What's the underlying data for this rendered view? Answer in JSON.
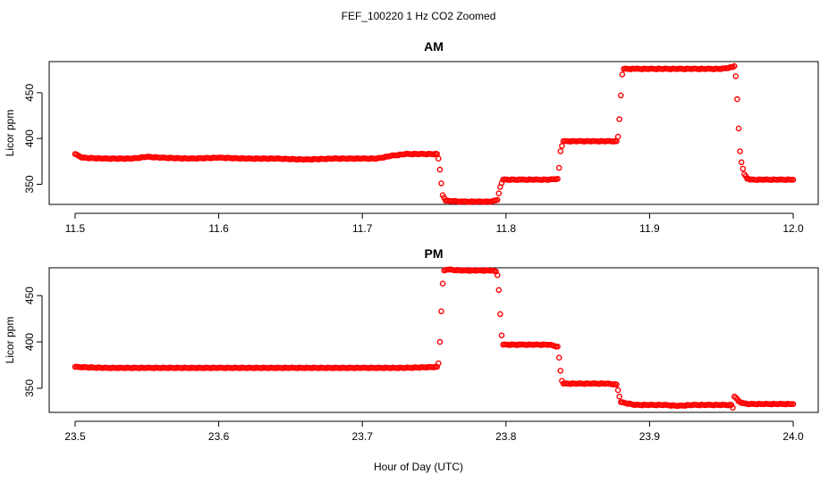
{
  "figure": {
    "title": "FEF_100220  1 Hz CO2 Zoomed",
    "xlabel": "Hour of Day (UTC)",
    "point_color": "#ff0000"
  },
  "chart_data": [
    {
      "type": "scatter",
      "title": "AM",
      "xlabel": "",
      "ylabel": "Licor ppm",
      "xlim": [
        11.5,
        12.0
      ],
      "ylim": [
        328,
        484
      ],
      "x_ticks": [
        "11.5",
        "11.6",
        "11.7",
        "11.8",
        "11.9",
        "12.0"
      ],
      "x_tick_values": [
        11.5,
        11.6,
        11.7,
        11.8,
        11.9,
        12.0
      ],
      "y_ticks": [
        "350",
        "400",
        "450"
      ],
      "y_tick_values": [
        350,
        400,
        450
      ],
      "series": [
        {
          "color": "#ff0000",
          "points": [
            [
              11.5,
              383
            ],
            [
              11.505,
              379
            ],
            [
              11.52,
              378
            ],
            [
              11.54,
              378
            ],
            [
              11.55,
              380
            ],
            [
              11.56,
              379
            ],
            [
              11.58,
              378
            ],
            [
              11.6,
              379
            ],
            [
              11.62,
              378
            ],
            [
              11.64,
              378
            ],
            [
              11.66,
              377
            ],
            [
              11.68,
              378
            ],
            [
              11.7,
              378
            ],
            [
              11.71,
              378
            ],
            [
              11.72,
              381
            ],
            [
              11.73,
              383
            ],
            [
              11.74,
              383
            ],
            [
              11.752,
              383
            ],
            [
              11.753,
              378
            ],
            [
              11.754,
              366
            ],
            [
              11.755,
              351
            ],
            [
              11.756,
              338
            ],
            [
              11.758,
              332
            ],
            [
              11.77,
              331
            ],
            [
              11.78,
              331
            ],
            [
              11.79,
              331
            ],
            [
              11.794,
              333
            ],
            [
              11.795,
              340
            ],
            [
              11.796,
              347
            ],
            [
              11.798,
              355
            ],
            [
              11.81,
              355
            ],
            [
              11.82,
              355
            ],
            [
              11.83,
              355
            ],
            [
              11.836,
              356
            ],
            [
              11.837,
              368
            ],
            [
              11.838,
              386
            ],
            [
              11.84,
              397
            ],
            [
              11.85,
              397
            ],
            [
              11.86,
              397
            ],
            [
              11.87,
              397
            ],
            [
              11.877,
              397
            ],
            [
              11.878,
              402
            ],
            [
              11.879,
              421
            ],
            [
              11.88,
              447
            ],
            [
              11.881,
              470
            ],
            [
              11.882,
              476
            ],
            [
              11.89,
              476
            ],
            [
              11.9,
              476
            ],
            [
              11.91,
              476
            ],
            [
              11.92,
              476
            ],
            [
              11.93,
              476
            ],
            [
              11.94,
              476
            ],
            [
              11.95,
              476
            ],
            [
              11.958,
              478
            ],
            [
              11.959,
              479
            ],
            [
              11.96,
              468
            ],
            [
              11.961,
              443
            ],
            [
              11.962,
              411
            ],
            [
              11.963,
              386
            ],
            [
              11.964,
              374
            ],
            [
              11.965,
              367
            ],
            [
              11.966,
              361
            ],
            [
              11.968,
              356
            ],
            [
              11.97,
              355
            ],
            [
              11.98,
              355
            ],
            [
              11.99,
              355
            ],
            [
              12.0,
              355
            ]
          ]
        }
      ]
    },
    {
      "type": "scatter",
      "title": "PM",
      "xlabel": "",
      "ylabel": "Licor ppm",
      "xlim": [
        23.5,
        24.0
      ],
      "ylim": [
        324,
        480
      ],
      "x_ticks": [
        "23.5",
        "23.6",
        "23.7",
        "23.8",
        "23.9",
        "24.0"
      ],
      "x_tick_values": [
        23.5,
        23.6,
        23.7,
        23.8,
        23.9,
        24.0
      ],
      "y_ticks": [
        "350",
        "400",
        "450"
      ],
      "y_tick_values": [
        350,
        400,
        450
      ],
      "series": [
        {
          "color": "#ff0000",
          "points": [
            [
              23.5,
              373
            ],
            [
              23.52,
              372
            ],
            [
              23.55,
              372
            ],
            [
              23.6,
              372
            ],
            [
              23.65,
              372
            ],
            [
              23.7,
              372
            ],
            [
              23.73,
              372
            ],
            [
              23.752,
              373
            ],
            [
              23.753,
              377
            ],
            [
              23.754,
              400
            ],
            [
              23.755,
              433
            ],
            [
              23.756,
              463
            ],
            [
              23.757,
              477
            ],
            [
              23.76,
              478
            ],
            [
              23.77,
              477
            ],
            [
              23.78,
              477
            ],
            [
              23.79,
              477
            ],
            [
              23.793,
              476
            ],
            [
              23.794,
              472
            ],
            [
              23.795,
              456
            ],
            [
              23.796,
              430
            ],
            [
              23.797,
              407
            ],
            [
              23.798,
              397
            ],
            [
              23.81,
              397
            ],
            [
              23.82,
              397
            ],
            [
              23.83,
              397
            ],
            [
              23.836,
              395
            ],
            [
              23.837,
              383
            ],
            [
              23.838,
              369
            ],
            [
              23.839,
              358
            ],
            [
              23.84,
              355
            ],
            [
              23.85,
              355
            ],
            [
              23.86,
              355
            ],
            [
              23.87,
              355
            ],
            [
              23.877,
              354
            ],
            [
              23.878,
              348
            ],
            [
              23.879,
              341
            ],
            [
              23.88,
              335
            ],
            [
              23.89,
              332
            ],
            [
              23.9,
              332
            ],
            [
              23.91,
              332
            ],
            [
              23.92,
              331
            ],
            [
              23.93,
              332
            ],
            [
              23.94,
              332
            ],
            [
              23.95,
              332
            ],
            [
              23.957,
              332
            ],
            [
              23.958,
              329
            ],
            [
              23.959,
              341
            ],
            [
              23.96,
              340
            ],
            [
              23.962,
              336
            ],
            [
              23.964,
              334
            ],
            [
              23.97,
              333
            ],
            [
              23.98,
              333
            ],
            [
              23.99,
              333
            ],
            [
              24.0,
              333
            ]
          ]
        }
      ]
    }
  ]
}
